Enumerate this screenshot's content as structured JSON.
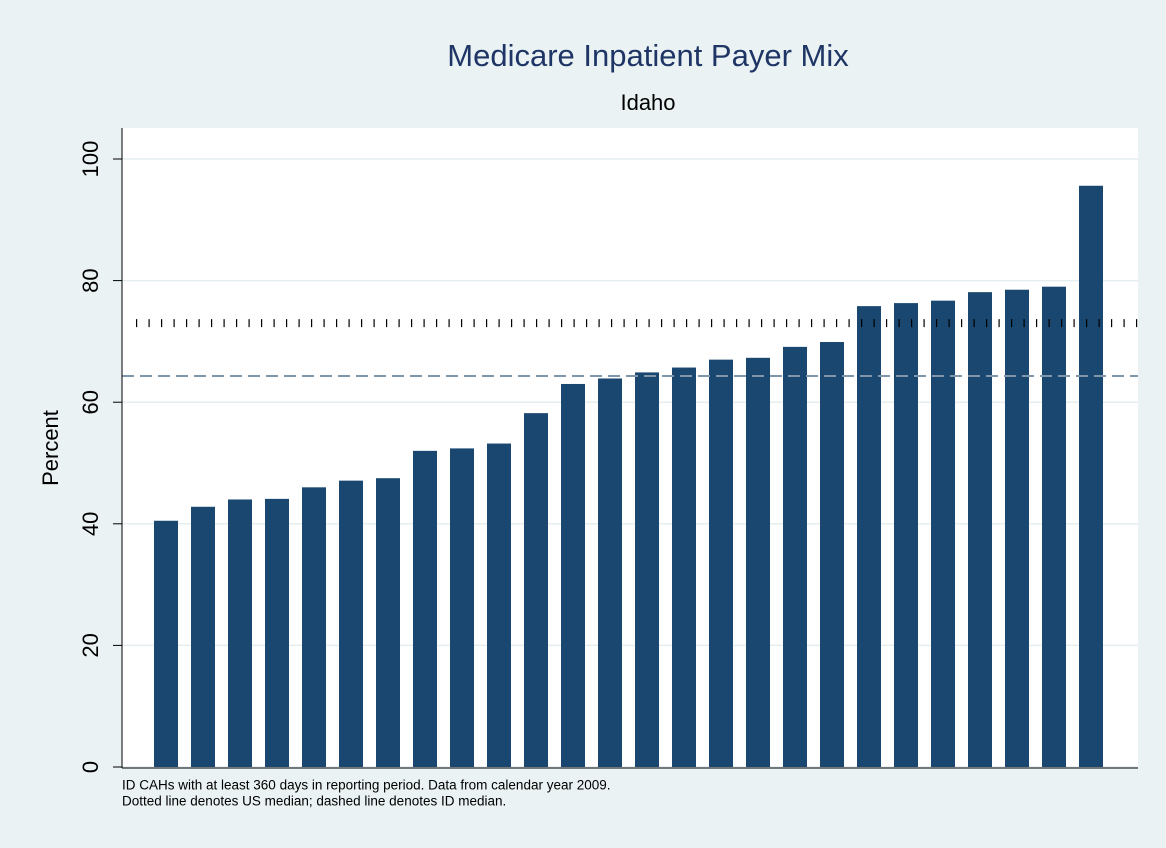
{
  "chart_data": {
    "type": "bar",
    "title": "Medicare Inpatient Payer Mix",
    "subtitle": "Idaho",
    "y_label": "Percent",
    "notes": [
      "ID CAHs with at least 360 days in reporting period. Data from calendar year 2009.",
      "Dotted line denotes US median; dashed line denotes ID median."
    ],
    "categories": [
      null,
      null,
      null,
      null,
      null,
      null,
      null,
      null,
      null,
      null,
      null,
      null,
      null,
      null,
      null,
      null,
      null,
      null,
      null,
      null,
      null,
      null,
      null,
      null,
      null,
      null
    ],
    "values": [
      40.5,
      42.8,
      44.0,
      44.1,
      46.0,
      47.1,
      47.5,
      52.0,
      52.4,
      53.2,
      58.2,
      63.0,
      63.9,
      64.9,
      65.7,
      67.0,
      67.3,
      69.1,
      69.9,
      75.8,
      76.3,
      76.7,
      78.1,
      78.5,
      79.0,
      95.6
    ],
    "color": "#1a476f",
    "reference_lines": [
      {
        "value": 73.0,
        "style": "dotted",
        "color": "#000000"
      },
      {
        "value": 64.3,
        "style": "dashed",
        "color": "#8096ab"
      }
    ],
    "ylim": [
      0,
      100
    ],
    "yticks": [
      0,
      20,
      40,
      60,
      80,
      100
    ],
    "grid": true
  }
}
